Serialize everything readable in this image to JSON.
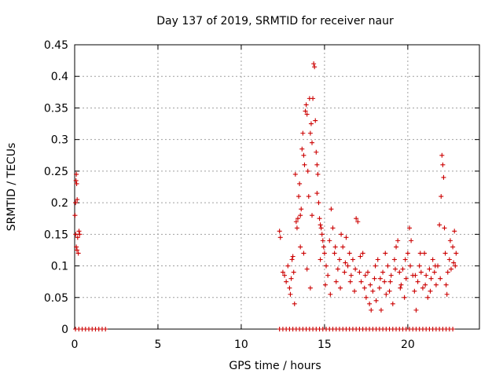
{
  "chart_data": {
    "type": "scatter",
    "title": "Day 137 of 2019, SRMTID for receiver naur",
    "xlabel": "GPS time / hours",
    "ylabel": "SRMTID / TECUs",
    "xlim": [
      0,
      24.3
    ],
    "ylim": [
      0,
      0.45
    ],
    "x_ticks": [
      0,
      5,
      10,
      15,
      20
    ],
    "y_ticks": [
      0,
      0.05,
      0.1,
      0.15,
      0.2,
      0.25,
      0.3,
      0.35,
      0.4,
      0.45
    ],
    "x_tick_labels": [
      "0",
      "5",
      "10",
      "15",
      "20"
    ],
    "y_tick_labels": [
      "0",
      "0.05",
      "0.1",
      "0.15",
      "0.2",
      "0.25",
      "0.3",
      "0.35",
      "0.4",
      "0.45"
    ],
    "grid": true,
    "marker": "+",
    "color": "#cc0000",
    "series": [
      {
        "name": "SRMTID",
        "points": [
          [
            0.02,
            0.18
          ],
          [
            0.05,
            0.2
          ],
          [
            0.08,
            0.235
          ],
          [
            0.1,
            0.245
          ],
          [
            0.12,
            0.23
          ],
          [
            0.15,
            0.205
          ],
          [
            0.06,
            0.15
          ],
          [
            0.1,
            0.13
          ],
          [
            0.14,
            0.125
          ],
          [
            0.18,
            0.145
          ],
          [
            0.22,
            0.12
          ],
          [
            0.26,
            0.155
          ],
          [
            0.3,
            0.15
          ],
          [
            0.05,
            0
          ],
          [
            0.25,
            0
          ],
          [
            0.45,
            0
          ],
          [
            0.65,
            0
          ],
          [
            0.85,
            0
          ],
          [
            1.05,
            0
          ],
          [
            1.25,
            0
          ],
          [
            1.45,
            0
          ],
          [
            1.65,
            0
          ],
          [
            1.85,
            0
          ],
          [
            12.3,
            0.155
          ],
          [
            12.35,
            0.145
          ],
          [
            12.5,
            0.09
          ],
          [
            12.6,
            0.085
          ],
          [
            12.7,
            0.075
          ],
          [
            12.8,
            0.1
          ],
          [
            12.9,
            0.065
          ],
          [
            12.95,
            0.055
          ],
          [
            13.0,
            0.08
          ],
          [
            13.05,
            0.11
          ],
          [
            13.1,
            0.115
          ],
          [
            13.15,
            0.09
          ],
          [
            13.2,
            0.04
          ],
          [
            13.25,
            0.245
          ],
          [
            13.3,
            0.17
          ],
          [
            13.35,
            0.16
          ],
          [
            13.4,
            0.175
          ],
          [
            13.45,
            0.21
          ],
          [
            13.5,
            0.23
          ],
          [
            13.55,
            0.18
          ],
          [
            13.6,
            0.19
          ],
          [
            13.65,
            0.285
          ],
          [
            13.7,
            0.31
          ],
          [
            13.75,
            0.275
          ],
          [
            13.8,
            0.26
          ],
          [
            13.85,
            0.345
          ],
          [
            13.9,
            0.355
          ],
          [
            13.95,
            0.34
          ],
          [
            14.0,
            0.25
          ],
          [
            14.05,
            0.21
          ],
          [
            14.1,
            0.365
          ],
          [
            14.15,
            0.31
          ],
          [
            14.2,
            0.325
          ],
          [
            14.25,
            0.295
          ],
          [
            14.3,
            0.365
          ],
          [
            14.35,
            0.42
          ],
          [
            14.4,
            0.415
          ],
          [
            14.45,
            0.33
          ],
          [
            14.5,
            0.28
          ],
          [
            14.55,
            0.26
          ],
          [
            14.6,
            0.245
          ],
          [
            14.65,
            0.2
          ],
          [
            14.7,
            0.175
          ],
          [
            14.75,
            0.165
          ],
          [
            14.8,
            0.16
          ],
          [
            14.85,
            0.15
          ],
          [
            14.9,
            0.14
          ],
          [
            14.95,
            0.13
          ],
          [
            13.55,
            0.13
          ],
          [
            13.75,
            0.12
          ],
          [
            13.95,
            0.095
          ],
          [
            14.15,
            0.065
          ],
          [
            14.25,
            0.18
          ],
          [
            14.55,
            0.215
          ],
          [
            14.75,
            0.11
          ],
          [
            15.0,
            0.12
          ],
          [
            15.1,
            0.1
          ],
          [
            15.2,
            0.085
          ],
          [
            15.3,
            0.14
          ],
          [
            15.4,
            0.19
          ],
          [
            15.5,
            0.16
          ],
          [
            15.6,
            0.12
          ],
          [
            15.7,
            0.075
          ],
          [
            15.8,
            0.095
          ],
          [
            15.9,
            0.11
          ],
          [
            16.0,
            0.15
          ],
          [
            16.1,
            0.13
          ],
          [
            16.2,
            0.09
          ],
          [
            16.3,
            0.145
          ],
          [
            16.4,
            0.1
          ],
          [
            16.5,
            0.12
          ],
          [
            16.6,
            0.085
          ],
          [
            16.7,
            0.11
          ],
          [
            16.8,
            0.06
          ],
          [
            16.9,
            0.175
          ],
          [
            17.0,
            0.17
          ],
          [
            17.1,
            0.09
          ],
          [
            17.2,
            0.075
          ],
          [
            17.3,
            0.12
          ],
          [
            17.4,
            0.065
          ],
          [
            17.5,
            0.05
          ],
          [
            17.6,
            0.09
          ],
          [
            17.7,
            0.04
          ],
          [
            17.8,
            0.03
          ],
          [
            17.9,
            0.06
          ],
          [
            18.0,
            0.08
          ],
          [
            18.1,
            0.045
          ],
          [
            18.2,
            0.11
          ],
          [
            18.3,
            0.065
          ],
          [
            18.4,
            0.03
          ],
          [
            18.5,
            0.09
          ],
          [
            18.6,
            0.075
          ],
          [
            18.7,
            0.055
          ],
          [
            18.8,
            0.1
          ],
          [
            18.9,
            0.06
          ],
          [
            19.0,
            0.085
          ],
          [
            19.1,
            0.04
          ],
          [
            19.2,
            0.11
          ],
          [
            19.3,
            0.13
          ],
          [
            19.4,
            0.14
          ],
          [
            19.5,
            0.09
          ],
          [
            19.6,
            0.07
          ],
          [
            19.7,
            0.095
          ],
          [
            19.8,
            0.05
          ],
          [
            19.9,
            0.08
          ],
          [
            20.0,
            0.12
          ],
          [
            20.1,
            0.16
          ],
          [
            20.2,
            0.14
          ],
          [
            20.3,
            0.085
          ],
          [
            20.4,
            0.06
          ],
          [
            20.5,
            0.03
          ],
          [
            20.6,
            0.075
          ],
          [
            20.7,
            0.1
          ],
          [
            20.8,
            0.09
          ],
          [
            20.9,
            0.065
          ],
          [
            21.0,
            0.12
          ],
          [
            21.1,
            0.085
          ],
          [
            21.2,
            0.05
          ],
          [
            21.3,
            0.095
          ],
          [
            21.4,
            0.08
          ],
          [
            21.5,
            0.11
          ],
          [
            21.6,
            0.09
          ],
          [
            21.7,
            0.07
          ],
          [
            21.8,
            0.1
          ],
          [
            21.9,
            0.165
          ],
          [
            22.0,
            0.21
          ],
          [
            22.05,
            0.275
          ],
          [
            22.1,
            0.26
          ],
          [
            22.15,
            0.24
          ],
          [
            22.2,
            0.16
          ],
          [
            22.25,
            0.12
          ],
          [
            22.3,
            0.07
          ],
          [
            22.35,
            0.055
          ],
          [
            22.4,
            0.09
          ],
          [
            22.5,
            0.11
          ],
          [
            22.6,
            0.095
          ],
          [
            22.7,
            0.13
          ],
          [
            22.8,
            0.155
          ],
          [
            22.85,
            0.1
          ],
          [
            22.9,
            0.12
          ],
          [
            15.05,
            0.07
          ],
          [
            15.35,
            0.055
          ],
          [
            15.65,
            0.13
          ],
          [
            15.95,
            0.065
          ],
          [
            16.25,
            0.105
          ],
          [
            16.55,
            0.075
          ],
          [
            16.85,
            0.095
          ],
          [
            17.15,
            0.115
          ],
          [
            17.45,
            0.085
          ],
          [
            17.75,
            0.07
          ],
          [
            18.05,
            0.1
          ],
          [
            18.35,
            0.08
          ],
          [
            18.65,
            0.12
          ],
          [
            18.95,
            0.075
          ],
          [
            19.25,
            0.095
          ],
          [
            19.55,
            0.065
          ],
          [
            19.85,
            0.11
          ],
          [
            20.15,
            0.1
          ],
          [
            20.45,
            0.085
          ],
          [
            20.75,
            0.12
          ],
          [
            21.05,
            0.07
          ],
          [
            21.35,
            0.06
          ],
          [
            21.65,
            0.1
          ],
          [
            21.95,
            0.08
          ],
          [
            22.55,
            0.14
          ],
          [
            22.75,
            0.105
          ],
          [
            12.3,
            0
          ],
          [
            12.5,
            0
          ],
          [
            12.7,
            0
          ],
          [
            12.9,
            0
          ],
          [
            13.1,
            0
          ],
          [
            13.3,
            0
          ],
          [
            13.5,
            0
          ],
          [
            13.7,
            0
          ],
          [
            13.9,
            0
          ],
          [
            14.1,
            0
          ],
          [
            14.3,
            0
          ],
          [
            14.5,
            0
          ],
          [
            14.7,
            0
          ],
          [
            14.9,
            0
          ],
          [
            15.1,
            0
          ],
          [
            15.3,
            0
          ],
          [
            15.5,
            0
          ],
          [
            15.7,
            0
          ],
          [
            15.9,
            0
          ],
          [
            16.1,
            0
          ],
          [
            16.3,
            0
          ],
          [
            16.5,
            0
          ],
          [
            16.7,
            0
          ],
          [
            16.9,
            0
          ],
          [
            17.1,
            0
          ],
          [
            17.3,
            0
          ],
          [
            17.5,
            0
          ],
          [
            17.7,
            0
          ],
          [
            17.9,
            0
          ],
          [
            18.1,
            0
          ],
          [
            18.3,
            0
          ],
          [
            18.5,
            0
          ],
          [
            18.7,
            0
          ],
          [
            18.9,
            0
          ],
          [
            19.1,
            0
          ],
          [
            19.3,
            0
          ],
          [
            19.5,
            0
          ],
          [
            19.7,
            0
          ],
          [
            19.9,
            0
          ],
          [
            20.1,
            0
          ],
          [
            20.3,
            0
          ],
          [
            20.5,
            0
          ],
          [
            20.7,
            0
          ],
          [
            20.9,
            0
          ],
          [
            21.1,
            0
          ],
          [
            21.3,
            0
          ],
          [
            21.5,
            0
          ],
          [
            21.7,
            0
          ],
          [
            21.9,
            0
          ],
          [
            22.1,
            0
          ],
          [
            22.3,
            0
          ],
          [
            22.5,
            0
          ],
          [
            22.7,
            0
          ]
        ]
      }
    ]
  }
}
